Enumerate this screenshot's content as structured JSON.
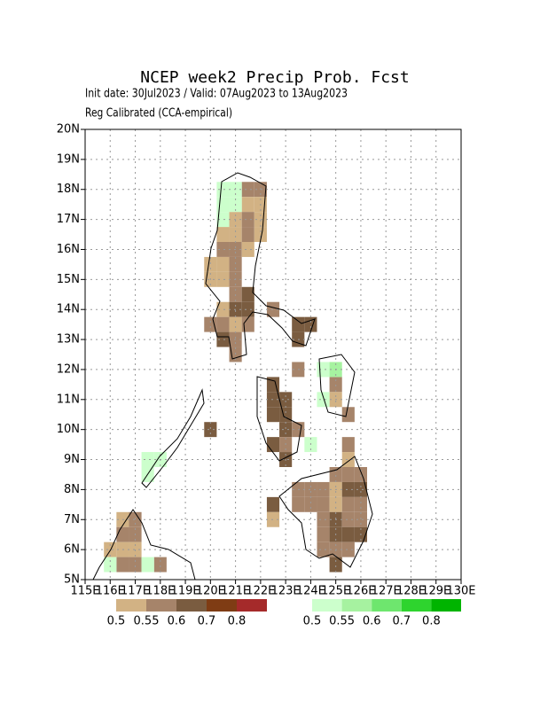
{
  "map": {
    "title": "NCEP week2 Precip Prob. Fcst",
    "init": "Init date: 30Jul2023 / Valid: 07Aug2023 to 13Aug2023",
    "calibration": "Reg Calibrated (CCA-empirical)",
    "lon_range": [
      115,
      130
    ],
    "lat_range": [
      5,
      20
    ],
    "grid": true,
    "lon_ticks": [
      {
        "value": 115,
        "label": "115E"
      },
      {
        "value": 116,
        "label": "116E"
      },
      {
        "value": 117,
        "label": "117E"
      },
      {
        "value": 118,
        "label": "118E"
      },
      {
        "value": 119,
        "label": "119E"
      },
      {
        "value": 120,
        "label": "120E"
      },
      {
        "value": 121,
        "label": "121E"
      },
      {
        "value": 122,
        "label": "122E"
      },
      {
        "value": 123,
        "label": "123E"
      },
      {
        "value": 124,
        "label": "124E"
      },
      {
        "value": 125,
        "label": "125E"
      },
      {
        "value": 126,
        "label": "126E"
      },
      {
        "value": 127,
        "label": "127E"
      },
      {
        "value": 128,
        "label": "128E"
      },
      {
        "value": 129,
        "label": "129E"
      },
      {
        "value": 130,
        "label": "130E"
      }
    ],
    "lat_ticks": [
      {
        "value": 5,
        "label": "5N"
      },
      {
        "value": 6,
        "label": "6N"
      },
      {
        "value": 7,
        "label": "7N"
      },
      {
        "value": 8,
        "label": "8N"
      },
      {
        "value": 9,
        "label": "9N"
      },
      {
        "value": 10,
        "label": "10N"
      },
      {
        "value": 11,
        "label": "11N"
      },
      {
        "value": 12,
        "label": "12N"
      },
      {
        "value": 13,
        "label": "13N"
      },
      {
        "value": 14,
        "label": "14N"
      },
      {
        "value": 15,
        "label": "15N"
      },
      {
        "value": 16,
        "label": "16N"
      },
      {
        "value": 17,
        "label": "17N"
      },
      {
        "value": 18,
        "label": "18N"
      },
      {
        "value": 19,
        "label": "19N"
      },
      {
        "value": 20,
        "label": "20N"
      }
    ],
    "below_legend": {
      "colors": [
        "#d2b284",
        "#a6846a",
        "#7a5c40",
        "#7f3c14",
        "#a52a2a"
      ],
      "labels": [
        0.5,
        0.55,
        0.6,
        0.7,
        0.8
      ]
    },
    "above_legend": {
      "colors": [
        "#ccffcc",
        "#a6f2a0",
        "#6ee66e",
        "#2ed42e",
        "#00b400"
      ],
      "labels": [
        0.5,
        0.55,
        0.6,
        0.7,
        0.8
      ]
    },
    "below_cells": [
      [
        121.5,
        18,
        1
      ],
      [
        122,
        18,
        1
      ],
      [
        121.5,
        17.5,
        0
      ],
      [
        122,
        17.5,
        0
      ],
      [
        121,
        17,
        0
      ],
      [
        121.5,
        17,
        1
      ],
      [
        122,
        17,
        0
      ],
      [
        120.5,
        16.5,
        0
      ],
      [
        121,
        16.5,
        0
      ],
      [
        121.5,
        16.5,
        1
      ],
      [
        122,
        16.5,
        0
      ],
      [
        120.5,
        16,
        1
      ],
      [
        121,
        16,
        1
      ],
      [
        121.5,
        16,
        0
      ],
      [
        120,
        15.5,
        0
      ],
      [
        120.5,
        15.5,
        0
      ],
      [
        121,
        15.5,
        1
      ],
      [
        120,
        15,
        0
      ],
      [
        120.5,
        15,
        0
      ],
      [
        121,
        15,
        1
      ],
      [
        121,
        14.5,
        1
      ],
      [
        121.5,
        14.5,
        2
      ],
      [
        120.5,
        14,
        0
      ],
      [
        121,
        14,
        2
      ],
      [
        121.5,
        14,
        2
      ],
      [
        122.5,
        14,
        1
      ],
      [
        120,
        13.5,
        1
      ],
      [
        120.5,
        13.5,
        1
      ],
      [
        121,
        13.5,
        0
      ],
      [
        121.5,
        13.5,
        1
      ],
      [
        123.5,
        13.5,
        2
      ],
      [
        124,
        13.5,
        2
      ],
      [
        120.5,
        13,
        2
      ],
      [
        121,
        13,
        1
      ],
      [
        123.5,
        13,
        2
      ],
      [
        121,
        12.5,
        1
      ],
      [
        123.5,
        12,
        1
      ],
      [
        122.5,
        11.5,
        2
      ],
      [
        125,
        11.5,
        1
      ],
      [
        122.5,
        11,
        2
      ],
      [
        123,
        11,
        2
      ],
      [
        125,
        11,
        0
      ],
      [
        122.5,
        10.5,
        2
      ],
      [
        123,
        10.5,
        2
      ],
      [
        125.5,
        10.5,
        1
      ],
      [
        123,
        10,
        2
      ],
      [
        123.5,
        10,
        1
      ],
      [
        120,
        10,
        2
      ],
      [
        122.5,
        9.5,
        2
      ],
      [
        123,
        9.5,
        1
      ],
      [
        125.5,
        9.5,
        1
      ],
      [
        123,
        9,
        2
      ],
      [
        125.5,
        9,
        0
      ],
      [
        125,
        8.5,
        1
      ],
      [
        125.5,
        8.5,
        1
      ],
      [
        126,
        8.5,
        1
      ],
      [
        123.5,
        8,
        1
      ],
      [
        124,
        8,
        1
      ],
      [
        124.5,
        8,
        1
      ],
      [
        125,
        8,
        0
      ],
      [
        125.5,
        8,
        2
      ],
      [
        126,
        8,
        2
      ],
      [
        122.5,
        7.5,
        2
      ],
      [
        123.5,
        7.5,
        1
      ],
      [
        124,
        7.5,
        1
      ],
      [
        124.5,
        7.5,
        1
      ],
      [
        125,
        7.5,
        0
      ],
      [
        125.5,
        7.5,
        1
      ],
      [
        126,
        7.5,
        1
      ],
      [
        122.5,
        7,
        0
      ],
      [
        124.5,
        7,
        1
      ],
      [
        125,
        7,
        2
      ],
      [
        125.5,
        7,
        1
      ],
      [
        126,
        7,
        1
      ],
      [
        124.5,
        6.5,
        1
      ],
      [
        125,
        6.5,
        2
      ],
      [
        125.5,
        6.5,
        2
      ],
      [
        126,
        6.5,
        2
      ],
      [
        124.5,
        6,
        1
      ],
      [
        125,
        6,
        1
      ],
      [
        125.5,
        6,
        1
      ],
      [
        125,
        5.5,
        2
      ],
      [
        116.5,
        7,
        0
      ],
      [
        117,
        7,
        1
      ],
      [
        116.5,
        6.5,
        1
      ],
      [
        117,
        6.5,
        1
      ],
      [
        116,
        6,
        0
      ],
      [
        116.5,
        6,
        0
      ],
      [
        117,
        6,
        0
      ],
      [
        116.5,
        5.5,
        1
      ],
      [
        117,
        5.5,
        1
      ],
      [
        118,
        5.5,
        1
      ]
    ],
    "above_cells": [
      [
        120.5,
        18,
        0
      ],
      [
        121,
        18,
        0
      ],
      [
        120.5,
        17.5,
        0
      ],
      [
        121,
        17.5,
        0
      ],
      [
        120.5,
        17,
        0
      ],
      [
        124.5,
        12,
        0
      ],
      [
        125,
        12,
        1
      ],
      [
        124.5,
        11,
        0
      ],
      [
        124,
        9.5,
        0
      ],
      [
        117.5,
        9,
        0
      ],
      [
        118,
        9,
        0
      ],
      [
        117.5,
        8.5,
        0
      ],
      [
        116,
        5.5,
        0
      ],
      [
        117.5,
        5.5,
        0
      ]
    ]
  }
}
